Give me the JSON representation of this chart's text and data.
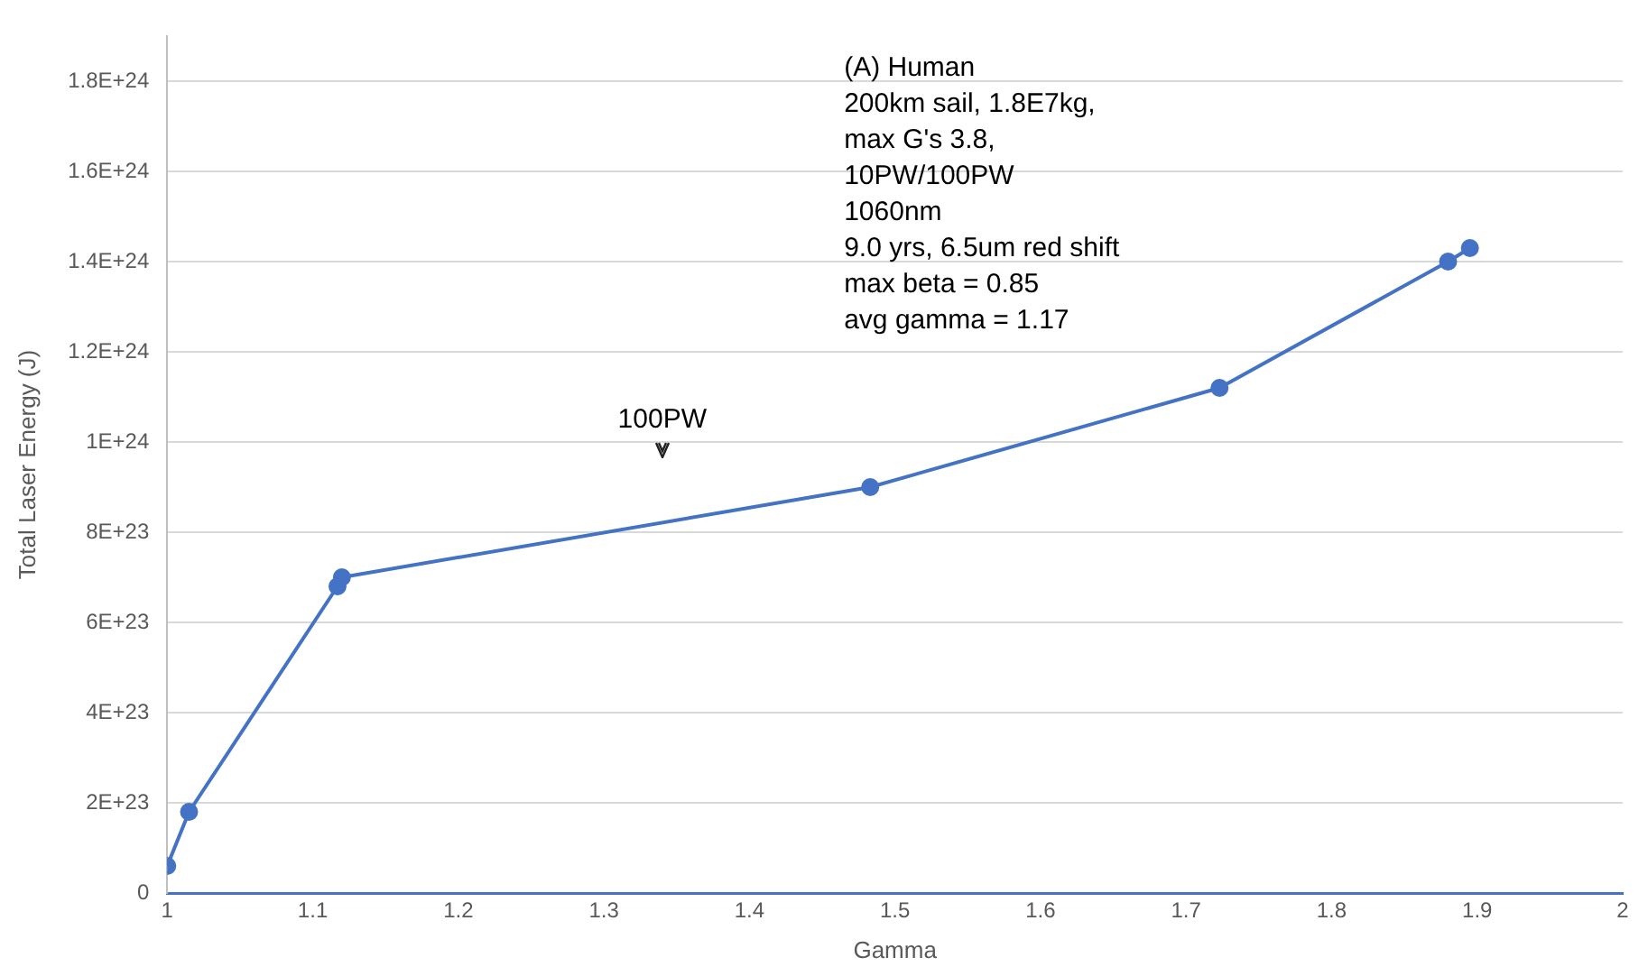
{
  "chart_data": {
    "type": "line",
    "xlabel": "Gamma",
    "ylabel": "Total Laser Energy (J)",
    "x": [
      1.0,
      1.015,
      1.117,
      1.12,
      1.483,
      1.723,
      1.88,
      1.895
    ],
    "series": [
      {
        "color": "#4472c4",
        "values": [
          6e+22,
          1.8e+23,
          6.8e+23,
          7e+23,
          9e+23,
          1.12e+24,
          1.4e+24,
          1.43e+24
        ]
      }
    ],
    "xlim": [
      1,
      2
    ],
    "xticks": [
      1,
      {
        "value": 1.1,
        "label": "1.1"
      },
      {
        "value": 1.2,
        "label": "1.2"
      },
      {
        "value": 1.3,
        "label": "1.3"
      },
      {
        "value": 1.4,
        "label": "1.4"
      },
      {
        "value": 1.5,
        "label": "1.5"
      },
      {
        "value": 1.6,
        "label": "1.6"
      },
      {
        "value": 1.7,
        "label": "1.7"
      },
      {
        "value": 1.8,
        "label": "1.8"
      },
      {
        "value": 1.9,
        "label": "1.9"
      },
      2
    ],
    "ylim": [
      0,
      1.9e+24
    ],
    "yticks": [
      0,
      {
        "value": 2e+23,
        "label": "2E+23"
      },
      {
        "value": 4e+23,
        "label": "4E+23"
      },
      {
        "value": 6e+23,
        "label": "6E+23"
      },
      {
        "value": 8e+23,
        "label": "8E+23"
      },
      {
        "value": 1e+24,
        "label": "1E+24"
      },
      {
        "value": 1.2e+24,
        "label": "1.2E+24"
      },
      {
        "value": 1.4e+24,
        "label": "1.4E+24"
      },
      {
        "value": 1.6e+24,
        "label": "1.6E+24"
      },
      {
        "value": 1.8e+24,
        "label": "1.8E+24"
      }
    ],
    "grid": "y",
    "legend": false,
    "marker": "circle",
    "line_style": "solid",
    "annotations": [
      "100PW",
      "(A) Human\n200km sail, 1.8E7kg,\nmax G's 3.8,\n10PW/100PW\n1060nm\n9.0 yrs, 6.5um red shift\nmax beta = 0.85\navg gamma = 1.17"
    ]
  }
}
